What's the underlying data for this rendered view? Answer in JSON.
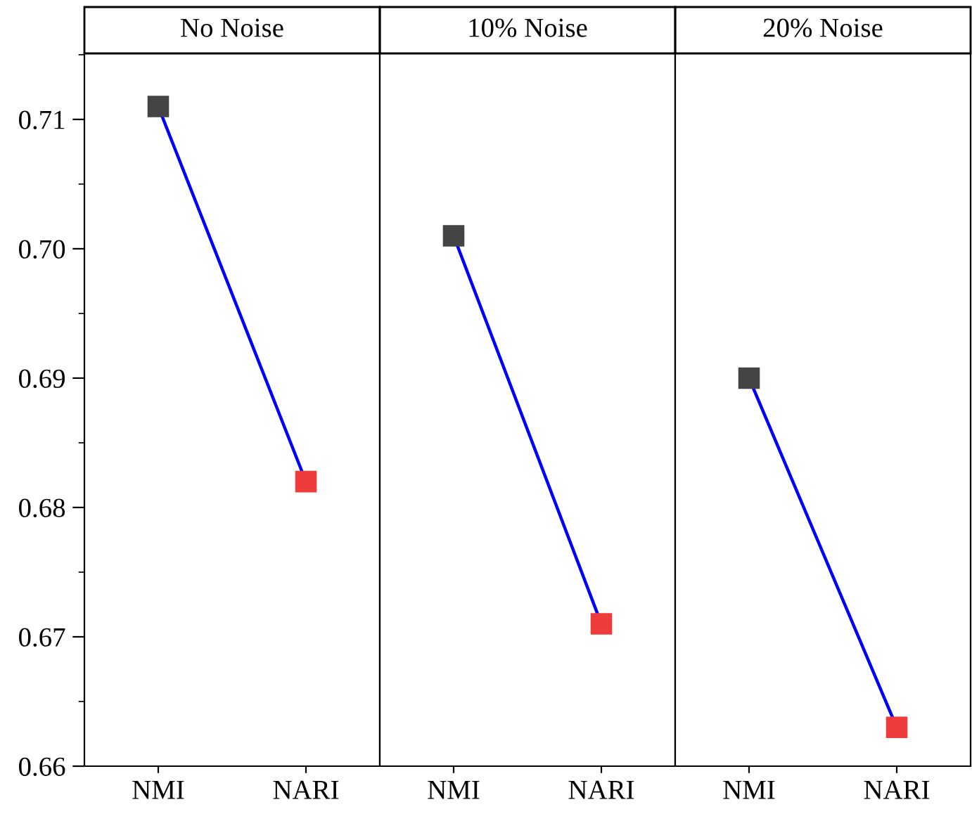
{
  "chart_data": [
    {
      "type": "line",
      "title": "No Noise",
      "categories": [
        "NMI",
        "NARI"
      ],
      "ylim": [
        0.66,
        0.7151
      ],
      "yticks": [
        0.66,
        0.67,
        0.68,
        0.69,
        {
          "value": 0.7,
          "label": "0.70"
        },
        0.71
      ],
      "grid": false,
      "marker": "square",
      "line_style": "solid",
      "series": [
        {
          "color": "#0000ff",
          "colors": [
            "#444444",
            "#ee3b3b"
          ],
          "values": [
            0.711,
            0.682
          ]
        }
      ]
    },
    {
      "type": "line",
      "title": "10% Noise",
      "categories": [
        "NMI",
        "NARI"
      ],
      "ylim": [
        0.66,
        0.7151
      ],
      "tick_labels": "x",
      "grid": false,
      "marker": "square",
      "line_style": "solid",
      "series": [
        {
          "color": "#0000ff",
          "colors": [
            "#444444",
            "#ee3b3b"
          ],
          "values": [
            0.701,
            0.671
          ]
        }
      ]
    },
    {
      "type": "line",
      "title": "20% Noise",
      "categories": [
        "NMI",
        "NARI"
      ],
      "ylim": [
        0.66,
        0.7151
      ],
      "tick_labels": "x",
      "grid": false,
      "marker": "square",
      "line_style": "solid",
      "series": [
        {
          "color": "#0000ff",
          "colors": [
            "#444444",
            "#ee3b3b"
          ],
          "values": [
            0.69,
            0.663
          ]
        }
      ]
    }
  ]
}
